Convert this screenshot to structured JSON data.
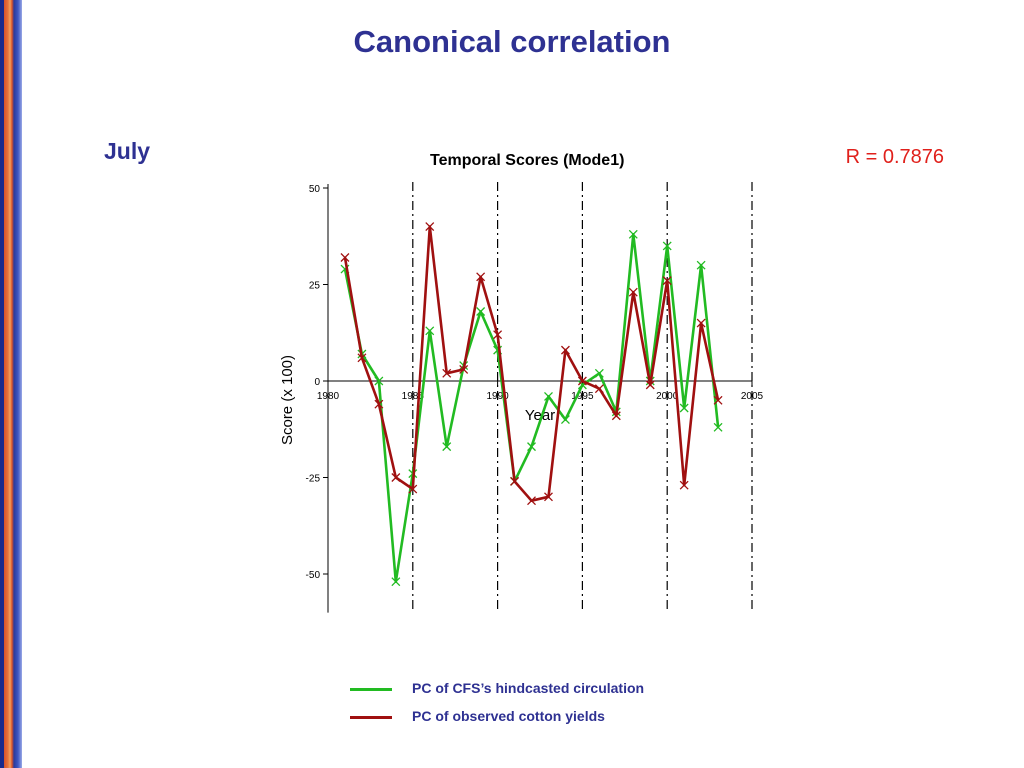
{
  "slide": {
    "title": "Canonical correlation",
    "month": "July",
    "correlation": "R = 0.7876"
  },
  "colors": {
    "cfs": "#22bb22",
    "obs": "#a01010",
    "title": "#2e3192",
    "r_label": "#e0201b"
  },
  "legend": [
    {
      "label": "PC of CFS’s hindcasted circulation",
      "color": "#22bb22"
    },
    {
      "label": "PC of observed cotton yields",
      "color": "#a01010"
    }
  ],
  "chart_data": {
    "type": "line",
    "title": "Temporal Scores (Mode1)",
    "xlabel": "Year",
    "ylabel": "Score (x 100)",
    "xlim": [
      1980,
      2005
    ],
    "ylim": [
      -60,
      50
    ],
    "x_ticks": [
      1980,
      1985,
      1990,
      1995,
      2000,
      2005
    ],
    "y_ticks": [
      50,
      25,
      0,
      -25,
      -50
    ],
    "vertical_dashed_lines": [
      1985,
      1990,
      1995,
      2000,
      2005
    ],
    "x": [
      1981,
      1982,
      1983,
      1984,
      1985,
      1986,
      1987,
      1988,
      1989,
      1990,
      1991,
      1992,
      1993,
      1994,
      1995,
      1996,
      1997,
      1998,
      1999,
      2000,
      2001,
      2002,
      2003
    ],
    "series": [
      {
        "name": "PC of CFS’s hindcasted circulation",
        "color": "#22bb22",
        "values": [
          29,
          7,
          0,
          -52,
          -24,
          13,
          -17,
          4,
          18,
          8,
          -26,
          -17,
          -4,
          -10,
          -1,
          2,
          -8,
          38,
          0,
          35,
          -7,
          30,
          -12
        ]
      },
      {
        "name": "PC of observed cotton yields",
        "color": "#a01010",
        "values": [
          32,
          6,
          -6,
          -25,
          -28,
          40,
          2,
          3,
          27,
          12,
          -26,
          -31,
          -30,
          8,
          0,
          -2,
          -9,
          23,
          -1,
          26,
          -27,
          15,
          -5
        ]
      }
    ]
  }
}
